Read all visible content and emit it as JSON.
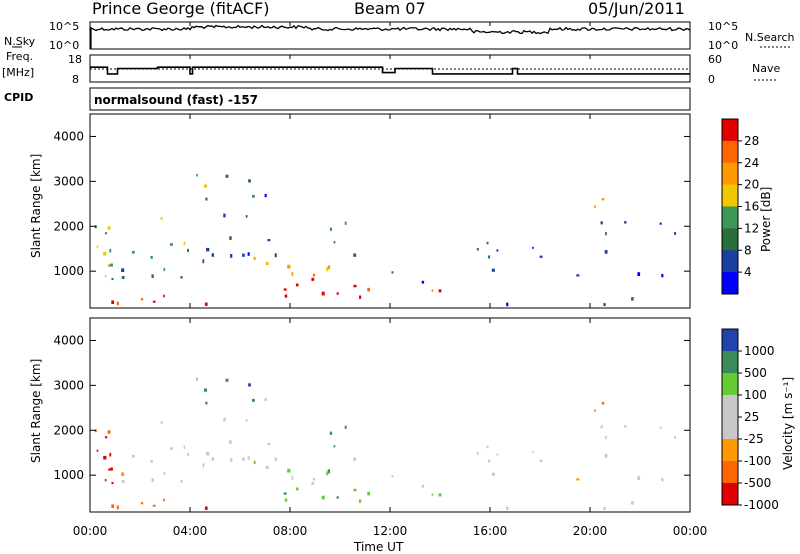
{
  "header": {
    "station": "Prince George (fitACF)",
    "beam": "Beam 07",
    "date": "05/Jun/2011"
  },
  "left_labels": {
    "nsky": "N.Sky",
    "freq_line1": "Freq.",
    "freq_line2": "[MHz]",
    "cpid": "CPID"
  },
  "right_labels": {
    "nsearch": "N.Search",
    "nave": "Nave"
  },
  "cpid_text": "normalsound (fast) -157",
  "colors": {
    "power": [
      "#0000ff",
      "#1a3fa0",
      "#2a6e3c",
      "#3a9a55",
      "#f0c800",
      "#ff9a00",
      "#ff6600",
      "#e00000"
    ],
    "velocity": [
      "#e00000",
      "#ff6600",
      "#ff9a00",
      "#c8c8c8",
      "#c8c8c8",
      "#66cc33",
      "#3a8a5a",
      "#2244aa"
    ],
    "ground_scatter": "#c8c8c8"
  },
  "chart_data": [
    {
      "type": "line",
      "name_panel": "noise",
      "ytick_labels_left": [
        "10^5",
        "10^0"
      ],
      "ytick_labels_right": [
        "10^5",
        "10^0"
      ]
    },
    {
      "type": "line",
      "name_panel": "frequency",
      "ytick_labels_left": [
        "18",
        "8"
      ],
      "ytick_labels_right": [
        "60",
        "0"
      ],
      "freq_steps": [
        {
          "x": 0.0,
          "y": 13.5
        },
        {
          "x": 0.7,
          "y": 11.0
        },
        {
          "x": 1.1,
          "y": 13.0
        },
        {
          "x": 2.7,
          "y": 13.5
        },
        {
          "x": 4.0,
          "y": 11.0
        },
        {
          "x": 4.1,
          "y": 13.5
        },
        {
          "x": 11.7,
          "y": 11.5
        },
        {
          "x": 12.2,
          "y": 13.0
        },
        {
          "x": 13.7,
          "y": 11.0
        },
        {
          "x": 16.9,
          "y": 13.0
        },
        {
          "x": 17.1,
          "y": 11.0
        },
        {
          "x": 24.0,
          "y": 11.0
        }
      ]
    },
    {
      "type": "heatmap",
      "name_panel": "power",
      "ylabel": "Slant Range [km]",
      "colorbar_label": "Power [dB]",
      "colorbar_ticks": [
        "28",
        "24",
        "20",
        "16",
        "12",
        "8",
        "4"
      ],
      "yticks": [
        "4000",
        "3000",
        "2000",
        "1000"
      ],
      "ylim": [
        180,
        4500
      ]
    },
    {
      "type": "heatmap",
      "name_panel": "velocity",
      "ylabel": "Slant Range [km]",
      "colorbar_label": "Velocity [m s⁻¹]",
      "colorbar_ticks": [
        "1000",
        "500",
        "100",
        "25",
        "-25",
        "-100",
        "-500",
        "-1000"
      ],
      "yticks": [
        "4000",
        "3000",
        "2000",
        "1000"
      ],
      "ylim": [
        180,
        4500
      ]
    }
  ],
  "x_axis": {
    "label": "Time UT",
    "ticks": [
      "00:00",
      "04:00",
      "08:00",
      "12:00",
      "16:00",
      "20:00",
      "00:00"
    ],
    "xlim": [
      0,
      24
    ]
  }
}
